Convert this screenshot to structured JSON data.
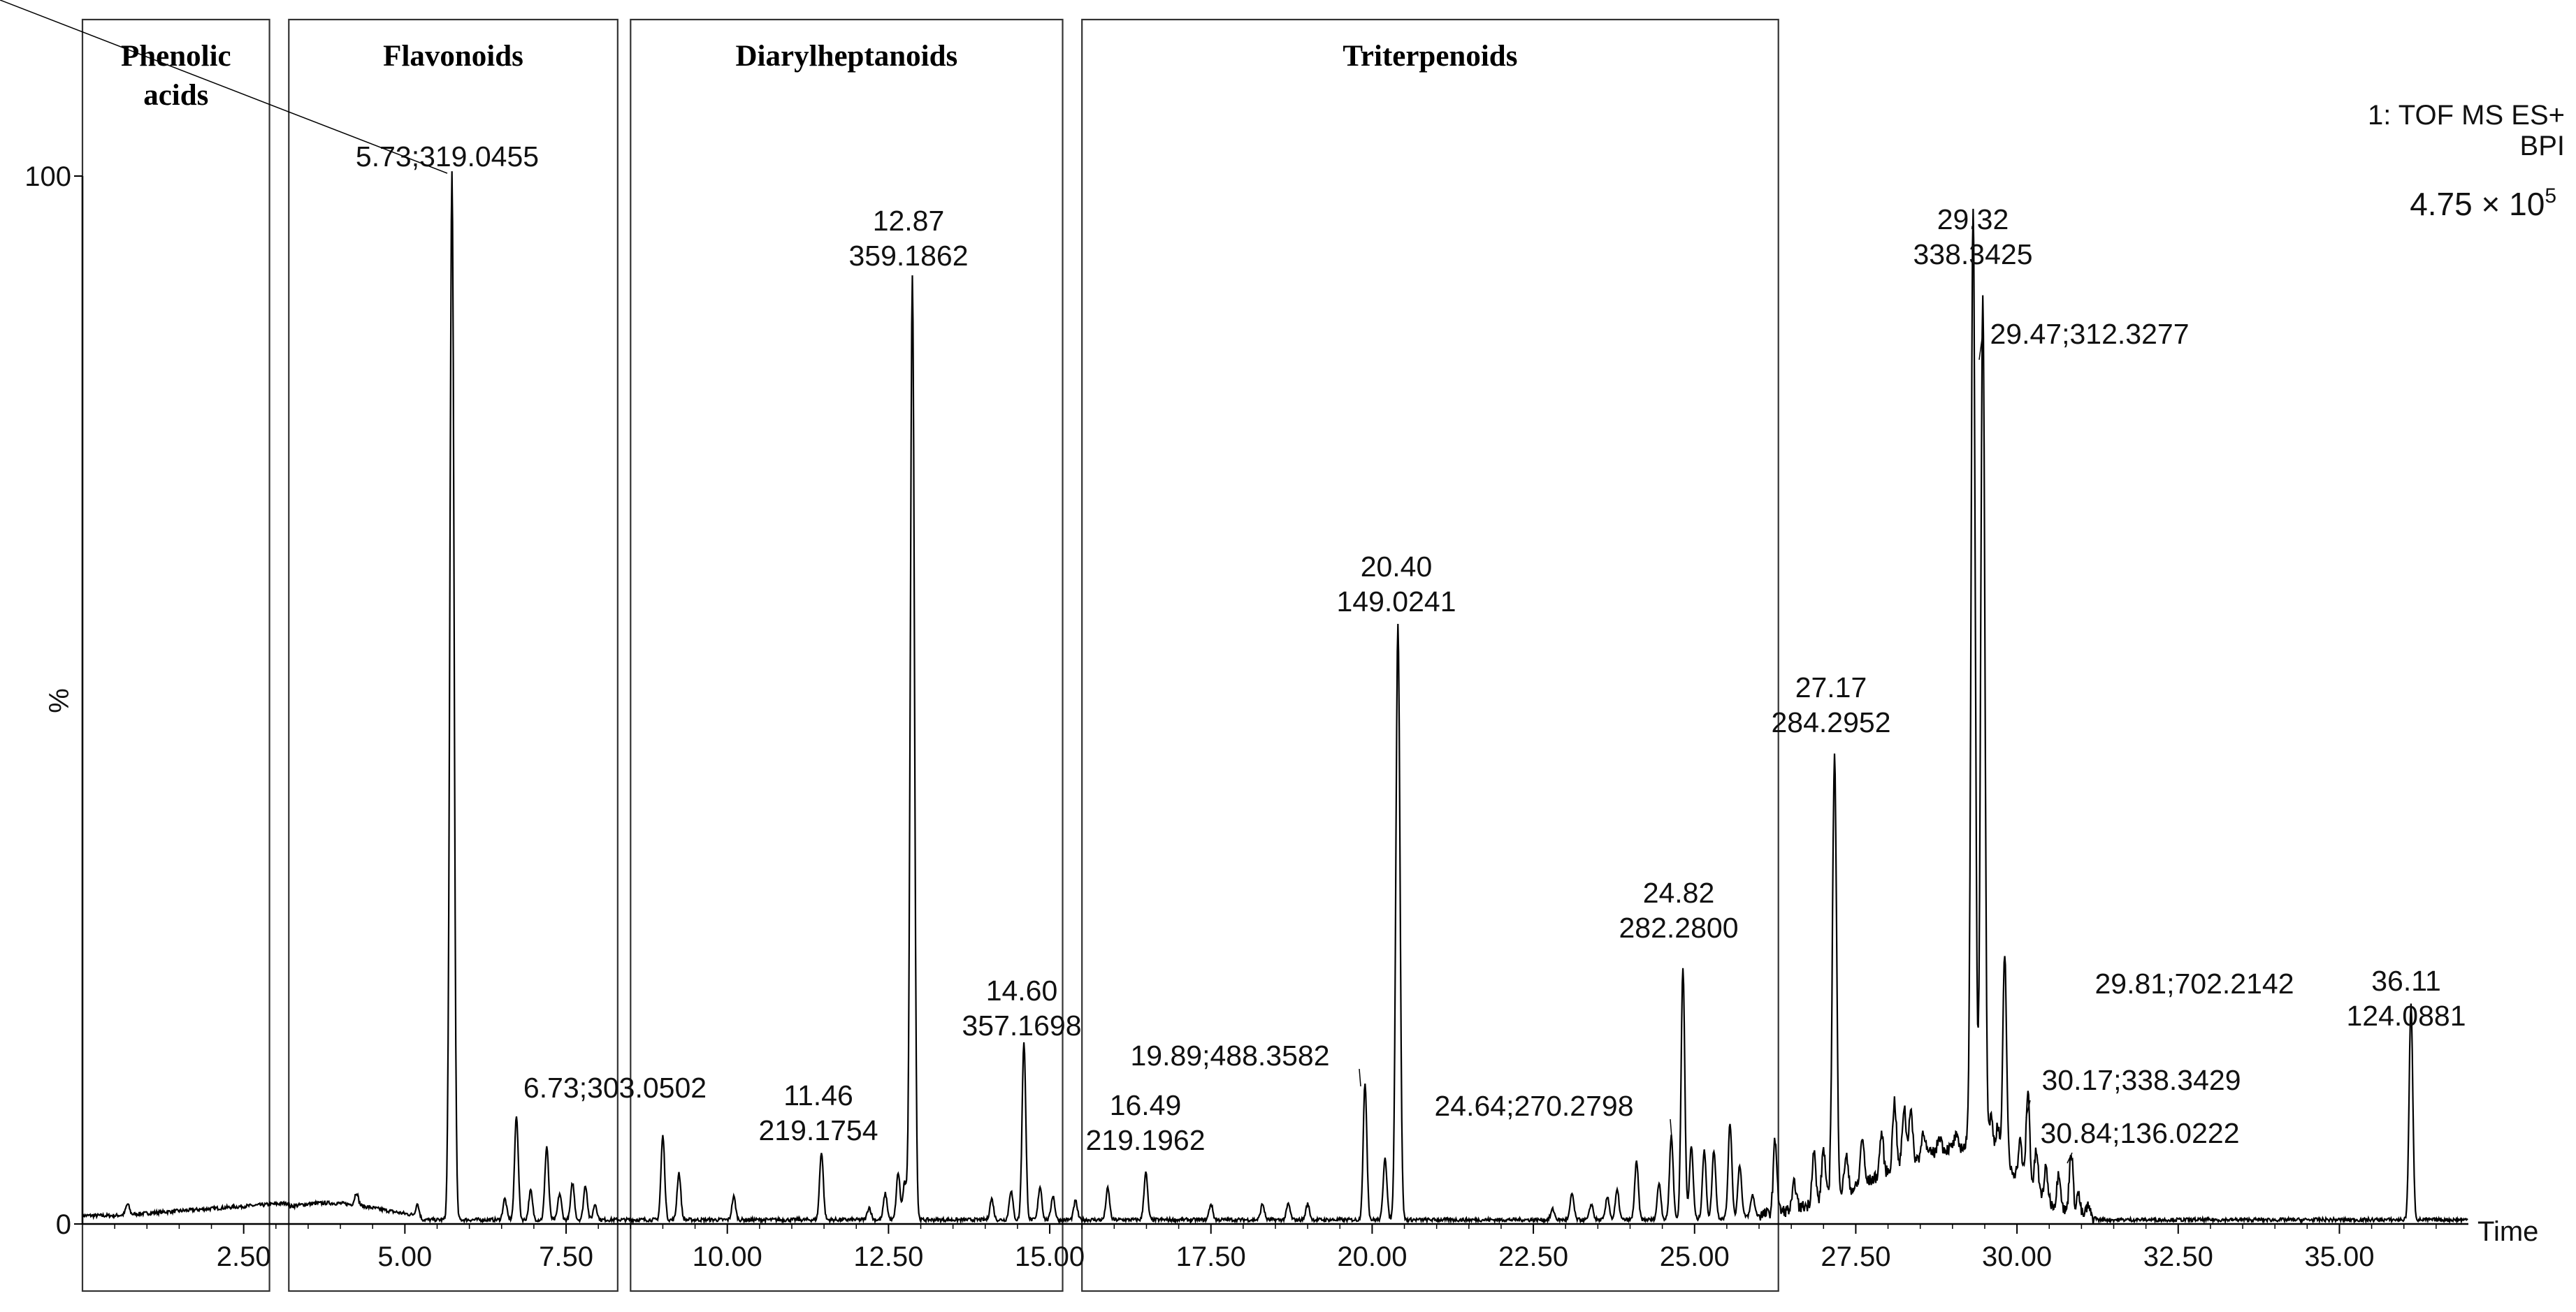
{
  "chart_data": {
    "type": "line",
    "title": "",
    "instrument": [
      "1: TOF MS ES+",
      "BPI"
    ],
    "intensity": {
      "base": "4.75 × 10",
      "exp": "5"
    },
    "xlabel": "Time",
    "ylabel": "%",
    "xlim": [
      0,
      37
    ],
    "ylim": [
      0,
      100
    ],
    "y_ticks": [
      "0",
      "100"
    ],
    "x_ticks": [
      {
        "v": 2.5,
        "label": "2.50"
      },
      {
        "v": 5,
        "label": "5.00"
      },
      {
        "v": 7.5,
        "label": "7.50"
      },
      {
        "v": 10,
        "label": "10.00"
      },
      {
        "v": 12.5,
        "label": "12.50"
      },
      {
        "v": 15,
        "label": "15.00"
      },
      {
        "v": 17.5,
        "label": "17.50"
      },
      {
        "v": 20,
        "label": "20.00"
      },
      {
        "v": 22.5,
        "label": "22.50"
      },
      {
        "v": 25,
        "label": "25.00"
      },
      {
        "v": 27.5,
        "label": "27.50"
      },
      {
        "v": 30,
        "label": "30.00"
      },
      {
        "v": 32.5,
        "label": "32.50"
      },
      {
        "v": 35,
        "label": "35.00"
      }
    ],
    "regions": [
      {
        "label": [
          "Phenolic",
          "acids"
        ],
        "x0": 0.0,
        "x1": 2.9
      },
      {
        "label": [
          "Flavonoids"
        ],
        "x0": 3.2,
        "x1": 8.3
      },
      {
        "label": [
          "Diarylheptanoids"
        ],
        "x0": 8.5,
        "x1": 15.2
      },
      {
        "label": [
          "Triterpenoids"
        ],
        "x0": 15.5,
        "x1": 26.3
      }
    ],
    "peaks": [
      {
        "rt": 5.73,
        "height": 100,
        "lines": [
          "5.73;319.0455"
        ]
      },
      {
        "rt": 6.73,
        "height": 10,
        "lines": [
          "6.73;303.0502"
        ]
      },
      {
        "rt": 11.46,
        "height": 6.5,
        "lines": [
          "11.46",
          "219.1754"
        ]
      },
      {
        "rt": 12.87,
        "height": 90,
        "lines": [
          "12.87",
          "359.1862"
        ]
      },
      {
        "rt": 14.6,
        "height": 17,
        "lines": [
          "14.60",
          "357.1698"
        ]
      },
      {
        "rt": 16.49,
        "height": 4.5,
        "lines": [
          "16.49",
          "219.1962"
        ]
      },
      {
        "rt": 19.89,
        "height": 13,
        "lines": [
          "19.89;488.3582"
        ]
      },
      {
        "rt": 20.4,
        "height": 57,
        "lines": [
          "20.40",
          "149.0241"
        ]
      },
      {
        "rt": 24.64,
        "height": 8,
        "lines": [
          "24.64;270.2798"
        ]
      },
      {
        "rt": 24.82,
        "height": 24,
        "lines": [
          "24.82",
          "282.2800"
        ]
      },
      {
        "rt": 27.17,
        "height": 42,
        "lines": [
          "27.17",
          "284.2952"
        ]
      },
      {
        "rt": 29.32,
        "height": 90,
        "lines": [
          "29.32",
          "338.3425"
        ]
      },
      {
        "rt": 29.47,
        "height": 82,
        "lines": [
          "29.47;312.3277"
        ]
      },
      {
        "rt": 29.81,
        "height": 20,
        "lines": [
          "29.81;702.2142"
        ]
      },
      {
        "rt": 30.17,
        "height": 9,
        "lines": [
          "30.17;338.3429"
        ]
      },
      {
        "rt": 30.84,
        "height": 6,
        "lines": [
          "30.84;136.0222"
        ]
      },
      {
        "rt": 36.11,
        "height": 20.5,
        "lines": [
          "36.11",
          "124.0881"
        ]
      }
    ],
    "minor_peaks": [
      [
        0.7,
        1.0
      ],
      [
        4.25,
        1.2
      ],
      [
        5.2,
        1.2
      ],
      [
        6.55,
        2.0
      ],
      [
        6.95,
        2.8
      ],
      [
        7.2,
        7.0
      ],
      [
        7.4,
        2.5
      ],
      [
        7.6,
        3.5
      ],
      [
        7.8,
        3.3
      ],
      [
        7.95,
        1.5
      ],
      [
        9.0,
        8.0
      ],
      [
        9.25,
        4.5
      ],
      [
        10.1,
        2.2
      ],
      [
        12.2,
        1.2
      ],
      [
        12.45,
        2.5
      ],
      [
        12.65,
        4.5
      ],
      [
        12.75,
        3.5
      ],
      [
        14.1,
        2.0
      ],
      [
        14.4,
        2.8
      ],
      [
        14.85,
        3.2
      ],
      [
        15.05,
        2.3
      ],
      [
        15.4,
        1.8
      ],
      [
        15.9,
        3.0
      ],
      [
        17.5,
        1.5
      ],
      [
        18.3,
        1.5
      ],
      [
        18.7,
        1.5
      ],
      [
        19.0,
        1.5
      ],
      [
        20.2,
        6.0
      ],
      [
        22.8,
        1.0
      ],
      [
        23.1,
        2.5
      ],
      [
        23.4,
        1.5
      ],
      [
        23.65,
        2.2
      ],
      [
        23.8,
        2.8
      ],
      [
        24.1,
        5.5
      ],
      [
        24.45,
        3.5
      ],
      [
        24.95,
        7.0
      ],
      [
        25.15,
        6.5
      ],
      [
        25.3,
        6.5
      ],
      [
        25.55,
        9.0
      ],
      [
        25.7,
        5.0
      ],
      [
        25.9,
        2.0
      ],
      [
        26.25,
        7.0
      ],
      [
        26.55,
        2.5
      ],
      [
        26.85,
        5.0
      ],
      [
        27.0,
        5.0
      ],
      [
        27.35,
        3.5
      ],
      [
        27.6,
        4.5
      ],
      [
        27.9,
        4.0
      ],
      [
        28.1,
        6.5
      ],
      [
        28.25,
        5.5
      ],
      [
        28.35,
        5.0
      ],
      [
        28.55,
        2.5
      ],
      [
        28.8,
        1.5
      ],
      [
        29.05,
        1.0
      ],
      [
        29.6,
        3.5
      ],
      [
        29.7,
        3.0
      ],
      [
        30.05,
        3.5
      ],
      [
        30.3,
        4.0
      ],
      [
        30.45,
        3.0
      ],
      [
        30.65,
        3.5
      ],
      [
        30.95,
        2.0
      ],
      [
        31.1,
        1.0
      ]
    ],
    "hump": {
      "center": 29.3,
      "left_width": 2.0,
      "right_width": 1.0,
      "height": 7.0,
      "cutoff": 31.25
    }
  }
}
